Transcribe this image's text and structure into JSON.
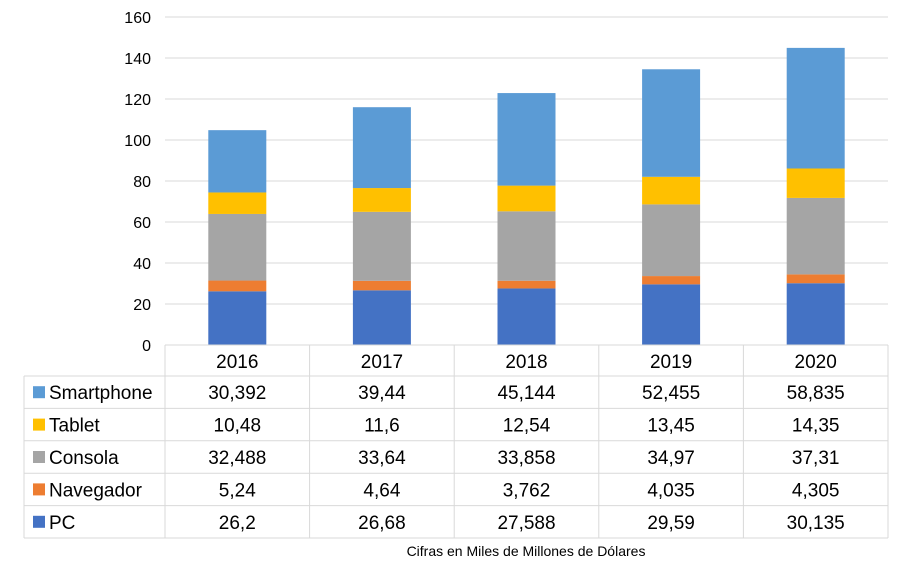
{
  "chart_data": {
    "type": "bar",
    "stacked": true,
    "categories": [
      "2016",
      "2017",
      "2018",
      "2019",
      "2020"
    ],
    "ylim": [
      0,
      160
    ],
    "yticks": [
      "0",
      "20",
      "40",
      "60",
      "80",
      "100",
      "120",
      "140",
      "160"
    ],
    "grid": true,
    "legend": "data-table",
    "xlabel": "Cifras en Miles de Millones de Dólares",
    "series": [
      {
        "name": "PC",
        "color": "#4472C4",
        "values": [
          26.2,
          26.68,
          27.588,
          29.59,
          30.135
        ],
        "labels": [
          "26,2",
          "26,68",
          "27,588",
          "29,59",
          "30,135"
        ]
      },
      {
        "name": "Navegador",
        "color": "#ED7D31",
        "values": [
          5.24,
          4.64,
          3.762,
          4.035,
          4.305
        ],
        "labels": [
          "5,24",
          "4,64",
          "3,762",
          "4,035",
          "4,305"
        ]
      },
      {
        "name": "Consola",
        "color": "#A5A5A5",
        "values": [
          32.488,
          33.64,
          33.858,
          34.97,
          37.31
        ],
        "labels": [
          "32,488",
          "33,64",
          "33,858",
          "34,97",
          "37,31"
        ]
      },
      {
        "name": "Tablet",
        "color": "#FFC000",
        "values": [
          10.48,
          11.6,
          12.54,
          13.45,
          14.35
        ],
        "labels": [
          "10,48",
          "11,6",
          "12,54",
          "13,45",
          "14,35"
        ]
      },
      {
        "name": "Smartphone",
        "color": "#5B9BD5",
        "values": [
          30.392,
          39.44,
          45.144,
          52.455,
          58.835
        ],
        "labels": [
          "30,392",
          "39,44",
          "45,144",
          "52,455",
          "58,835"
        ]
      }
    ]
  }
}
